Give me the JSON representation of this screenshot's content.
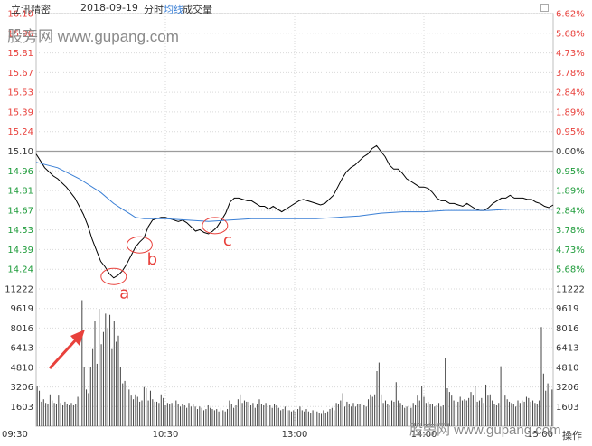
{
  "header": {
    "stock_name": "立讯精密",
    "date": "2018-09-19",
    "mode": "分时",
    "avg_line_label": "均线",
    "volume_label": "成交量"
  },
  "watermarks": {
    "top": "股旁网 www.gupang.com",
    "bottom": "股旁网 www.gupang.com"
  },
  "footer": {
    "action_label": "操作"
  },
  "colors": {
    "price_line": "#000000",
    "avg_line": "#3a7fd5",
    "up_text": "#e8413c",
    "down_text": "#1e9b3a",
    "grid": "#d9d9d9",
    "annotation": "#e8413c",
    "volume_bar": "#444444"
  },
  "chart_data": [
    {
      "type": "line",
      "title": "",
      "xlabel": "",
      "ylabel": "",
      "ylim": [
        14.1,
        16.1
      ],
      "prev_close": 15.1,
      "grid": true,
      "left_ticks": [
        "16.10",
        "15.96",
        "15.81",
        "15.67",
        "15.53",
        "15.39",
        "15.24",
        "15.10",
        "14.96",
        "14.81",
        "14.67",
        "14.53",
        "14.39",
        "14.24",
        "11222"
      ],
      "right_ticks": [
        "6.62%",
        "5.68%",
        "4.73%",
        "3.78%",
        "2.84%",
        "1.89%",
        "0.95%",
        "0.00%",
        "0.95%",
        "1.89%",
        "2.84%",
        "3.78%",
        "4.73%",
        "5.68%",
        "11222"
      ],
      "x_ticks": [
        "09:30",
        "10:30",
        "13:00",
        "14:00",
        "15:00"
      ],
      "series": [
        {
          "key": "price",
          "points": [
            [
              0,
              15.08
            ],
            [
              2,
              15.03
            ],
            [
              4,
              14.98
            ],
            [
              6,
              14.95
            ],
            [
              8,
              14.92
            ],
            [
              10,
              14.9
            ],
            [
              12,
              14.87
            ],
            [
              14,
              14.84
            ],
            [
              16,
              14.8
            ],
            [
              18,
              14.76
            ],
            [
              20,
              14.7
            ],
            [
              22,
              14.64
            ],
            [
              24,
              14.56
            ],
            [
              26,
              14.46
            ],
            [
              28,
              14.38
            ],
            [
              30,
              14.3
            ],
            [
              32,
              14.26
            ],
            [
              34,
              14.21
            ],
            [
              36,
              14.18
            ],
            [
              38,
              14.2
            ],
            [
              40,
              14.23
            ],
            [
              42,
              14.28
            ],
            [
              44,
              14.34
            ],
            [
              46,
              14.4
            ],
            [
              48,
              14.44
            ],
            [
              50,
              14.47
            ],
            [
              52,
              14.55
            ],
            [
              54,
              14.6
            ],
            [
              56,
              14.61
            ],
            [
              58,
              14.62
            ],
            [
              60,
              14.62
            ],
            [
              62,
              14.61
            ],
            [
              64,
              14.6
            ],
            [
              66,
              14.59
            ],
            [
              68,
              14.6
            ],
            [
              70,
              14.58
            ],
            [
              72,
              14.55
            ],
            [
              74,
              14.52
            ],
            [
              76,
              14.53
            ],
            [
              78,
              14.51
            ],
            [
              80,
              14.5
            ],
            [
              82,
              14.52
            ],
            [
              84,
              14.55
            ],
            [
              86,
              14.6
            ],
            [
              88,
              14.65
            ],
            [
              90,
              14.73
            ],
            [
              92,
              14.76
            ],
            [
              94,
              14.76
            ],
            [
              96,
              14.75
            ],
            [
              98,
              14.74
            ],
            [
              100,
              14.74
            ],
            [
              102,
              14.72
            ],
            [
              104,
              14.7
            ],
            [
              106,
              14.7
            ],
            [
              108,
              14.68
            ],
            [
              110,
              14.7
            ],
            [
              112,
              14.68
            ],
            [
              114,
              14.66
            ],
            [
              116,
              14.68
            ],
            [
              118,
              14.7
            ],
            [
              120,
              14.72
            ],
            [
              122,
              14.74
            ],
            [
              124,
              14.75
            ],
            [
              126,
              14.74
            ],
            [
              128,
              14.73
            ],
            [
              130,
              14.72
            ],
            [
              132,
              14.71
            ],
            [
              134,
              14.72
            ],
            [
              136,
              14.75
            ],
            [
              138,
              14.78
            ],
            [
              140,
              14.84
            ],
            [
              142,
              14.9
            ],
            [
              144,
              14.95
            ],
            [
              146,
              14.98
            ],
            [
              148,
              15.0
            ],
            [
              150,
              15.03
            ],
            [
              152,
              15.06
            ],
            [
              154,
              15.08
            ],
            [
              156,
              15.12
            ],
            [
              158,
              15.14
            ],
            [
              160,
              15.1
            ],
            [
              162,
              15.06
            ],
            [
              164,
              15.0
            ],
            [
              166,
              14.97
            ],
            [
              168,
              14.97
            ],
            [
              170,
              14.94
            ],
            [
              172,
              14.9
            ],
            [
              174,
              14.88
            ],
            [
              176,
              14.86
            ],
            [
              178,
              14.84
            ],
            [
              180,
              14.84
            ],
            [
              182,
              14.83
            ],
            [
              184,
              14.8
            ],
            [
              186,
              14.76
            ],
            [
              188,
              14.74
            ],
            [
              190,
              14.74
            ],
            [
              192,
              14.72
            ],
            [
              194,
              14.72
            ],
            [
              196,
              14.71
            ],
            [
              198,
              14.7
            ],
            [
              200,
              14.72
            ],
            [
              202,
              14.7
            ],
            [
              204,
              14.68
            ],
            [
              206,
              14.67
            ],
            [
              208,
              14.67
            ],
            [
              210,
              14.69
            ],
            [
              212,
              14.72
            ],
            [
              214,
              14.74
            ],
            [
              216,
              14.76
            ],
            [
              218,
              14.76
            ],
            [
              220,
              14.78
            ],
            [
              222,
              14.76
            ],
            [
              224,
              14.76
            ],
            [
              226,
              14.76
            ],
            [
              228,
              14.75
            ],
            [
              230,
              14.75
            ],
            [
              232,
              14.73
            ],
            [
              234,
              14.72
            ],
            [
              236,
              14.7
            ],
            [
              238,
              14.69
            ],
            [
              240,
              14.71
            ]
          ]
        },
        {
          "key": "avg",
          "points": [
            [
              0,
              15.02
            ],
            [
              10,
              14.98
            ],
            [
              20,
              14.9
            ],
            [
              30,
              14.8
            ],
            [
              36,
              14.72
            ],
            [
              40,
              14.68
            ],
            [
              44,
              14.64
            ],
            [
              46,
              14.62
            ],
            [
              50,
              14.61
            ],
            [
              60,
              14.61
            ],
            [
              70,
              14.6
            ],
            [
              80,
              14.59
            ],
            [
              90,
              14.6
            ],
            [
              100,
              14.61
            ],
            [
              110,
              14.61
            ],
            [
              120,
              14.61
            ],
            [
              130,
              14.61
            ],
            [
              140,
              14.62
            ],
            [
              150,
              14.63
            ],
            [
              160,
              14.65
            ],
            [
              170,
              14.66
            ],
            [
              180,
              14.66
            ],
            [
              190,
              14.67
            ],
            [
              200,
              14.67
            ],
            [
              210,
              14.67
            ],
            [
              220,
              14.68
            ],
            [
              230,
              14.68
            ],
            [
              240,
              14.68
            ]
          ]
        }
      ],
      "annotations": [
        {
          "label": "a",
          "x": 36,
          "y": 14.19
        },
        {
          "label": "b",
          "x": 48,
          "y": 14.42
        },
        {
          "label": "c",
          "x": 83,
          "y": 14.56
        }
      ]
    },
    {
      "type": "bar",
      "title": "",
      "ylabel": "",
      "ylim": [
        0,
        11222
      ],
      "left_ticks": [
        "9619",
        "8016",
        "6413",
        "4810",
        "3206",
        "1603"
      ],
      "right_ticks": [
        "9619",
        "8016",
        "6413",
        "4810",
        "3206",
        "1603"
      ],
      "values": [
        3300,
        2900,
        2000,
        2200,
        1900,
        1800,
        2600,
        2100,
        1900,
        1800,
        2500,
        1900,
        1700,
        2000,
        1800,
        1700,
        1900,
        1700,
        1800,
        2400,
        2300,
        10300,
        4800,
        3000,
        2700,
        4800,
        6300,
        8600,
        5100,
        9600,
        6700,
        7700,
        9200,
        8000,
        9100,
        6300,
        8600,
        6900,
        7400,
        4800,
        3500,
        3700,
        3400,
        3000,
        2500,
        2200,
        2600,
        2400,
        2000,
        2100,
        3200,
        3100,
        2100,
        2900,
        2200,
        2000,
        2000,
        1900,
        2600,
        2300,
        1700,
        1900,
        1800,
        1900,
        1600,
        2100,
        1800,
        1600,
        1800,
        1700,
        1500,
        1900,
        1600,
        1800,
        1600,
        1400,
        1600,
        1500,
        1300,
        1400,
        1700,
        1500,
        1400,
        1300,
        1400,
        1200,
        1500,
        1300,
        1200,
        1400,
        2100,
        1800,
        1500,
        1700,
        2200,
        2600,
        1900,
        2100,
        2000,
        2000,
        1700,
        1900,
        1500,
        1800,
        2200,
        1800,
        1700,
        1900,
        1600,
        1700,
        1500,
        1800,
        1700,
        1500,
        1300,
        1400,
        1600,
        1300,
        1300,
        1200,
        1300,
        1200,
        1400,
        1600,
        1300,
        1200,
        1400,
        1200,
        1100,
        1300,
        1100,
        1200,
        1100,
        1000,
        1300,
        1100,
        1200,
        1400,
        1500,
        1300,
        1900,
        1800,
        2100,
        2700,
        1600,
        2000,
        1800,
        1600,
        1900,
        1600,
        1800,
        1800,
        1900,
        1700,
        1600,
        2200,
        2600,
        2400,
        2600,
        4500,
        5200,
        2600,
        1900,
        2100,
        1800,
        1700,
        2100,
        2000,
        3600,
        2100,
        1900,
        1700,
        1500,
        1600,
        1700,
        1500,
        1900,
        1700,
        2500,
        2100,
        3300,
        2400,
        1900,
        2000,
        1800,
        1800,
        1600,
        1700,
        1900,
        1600,
        1700,
        5600,
        3100,
        2800,
        2500,
        2100,
        1800,
        2000,
        2400,
        2100,
        2200,
        2100,
        2300,
        2800,
        2500,
        3300,
        2000,
        2100,
        2300,
        1900,
        3400,
        2500,
        2600,
        2100,
        1800,
        1700,
        1900,
        4900,
        3000,
        2500,
        2200,
        2000,
        1900,
        1800,
        1600,
        2100,
        1900,
        2100,
        2000,
        2400,
        2300,
        2000,
        2100,
        1900,
        1800,
        2100,
        8100,
        4300,
        2900,
        3500,
        2700,
        3000
      ]
    }
  ]
}
